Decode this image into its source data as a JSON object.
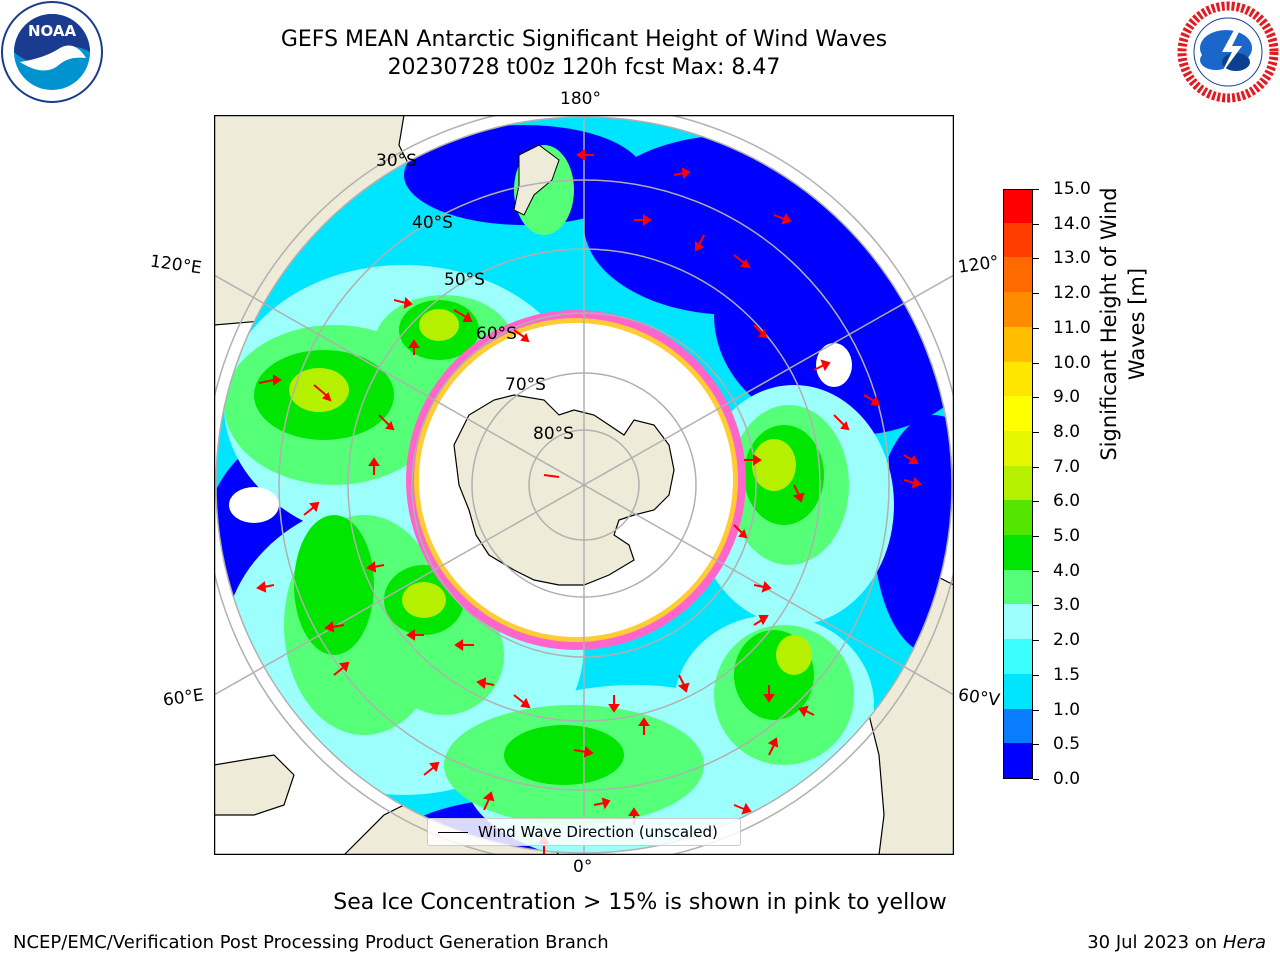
{
  "title": {
    "line1": "GEFS MEAN Antarctic Significant Height of Wind Waves",
    "line2": "20230728 t00z 120h fcst   Max: 8.47"
  },
  "logos": {
    "left": {
      "text": "NOAA",
      "icon": "noaa-logo"
    },
    "right": {
      "icon": "national-weather-service-logo"
    }
  },
  "map": {
    "projection": "south-polar-stereographic",
    "lon_labels": {
      "top": "180°",
      "bottom": "0°",
      "upper_left": "120°E",
      "lower_left": "60°E",
      "upper_right": "120°",
      "lower_right": "60°V"
    },
    "lat_labels": [
      "30°S",
      "40°S",
      "50°S",
      "60°S",
      "70°S",
      "80°S"
    ],
    "colors": {
      "land": "#eeecd9",
      "sea_ice_pink": "#ff66cc",
      "sea_ice_yellow": "#ffcc33",
      "grid": "#b0b0b0",
      "arrow": "#ff0000"
    }
  },
  "colorbar": {
    "label": "Significant Height of Wind Waves [m]",
    "ticks": [
      "0.0",
      "0.5",
      "1.0",
      "1.5",
      "2.0",
      "3.0",
      "4.0",
      "5.0",
      "6.0",
      "7.0",
      "8.0",
      "9.0",
      "10.0",
      "11.0",
      "12.0",
      "13.0",
      "14.0",
      "15.0"
    ],
    "colors": [
      "#0000ff",
      "#0a7cff",
      "#00e5ff",
      "#3bffff",
      "#9dfffb",
      "#55ff77",
      "#00e600",
      "#55e600",
      "#b4f000",
      "#e6f500",
      "#ffff00",
      "#ffe600",
      "#ffbf00",
      "#ff8c00",
      "#ff6a00",
      "#ff3c00",
      "#ff0000"
    ]
  },
  "legend": {
    "label": "Wind Wave Direction (unscaled)"
  },
  "footnote": "Sea Ice Concentration > 15% is shown in pink to yellow",
  "credit": "NCEP/EMC/Verification Post Processing Product Generation Branch",
  "date": {
    "text": "30 Jul 2023 on ",
    "machine": "Hera"
  }
}
